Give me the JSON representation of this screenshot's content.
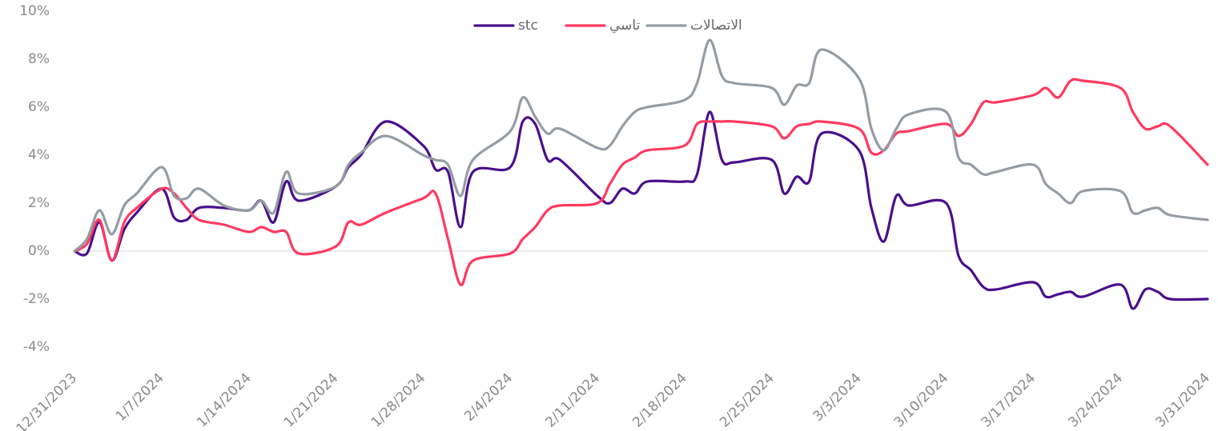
{
  "chart_data": {
    "type": "line",
    "x": [
      "12/31/2023",
      "1/1/2024",
      "1/2/2024",
      "1/3/2024",
      "1/4/2024",
      "1/5/2024",
      "1/7/2024",
      "1/8/2024",
      "1/9/2024",
      "1/10/2024",
      "1/12/2024",
      "1/14/2024",
      "1/15/2024",
      "1/16/2024",
      "1/17/2024",
      "1/18/2024",
      "1/21/2024",
      "1/22/2024",
      "1/23/2024",
      "1/25/2024",
      "1/28/2024",
      "1/29/2024",
      "1/30/2024",
      "1/31/2024",
      "2/1/2024",
      "2/4/2024",
      "2/5/2024",
      "2/6/2024",
      "2/7/2024",
      "2/8/2024",
      "2/11/2024",
      "2/12/2024",
      "2/13/2024",
      "2/14/2024",
      "2/15/2024",
      "2/18/2024",
      "2/19/2024",
      "2/20/2024",
      "2/21/2024",
      "2/22/2024",
      "2/25/2024",
      "2/26/2024",
      "2/27/2024",
      "2/28/2024",
      "2/29/2024",
      "3/3/2024",
      "3/4/2024",
      "3/5/2024",
      "3/6/2024",
      "3/7/2024",
      "3/10/2024",
      "3/11/2024",
      "3/12/2024",
      "3/13/2024",
      "3/14/2024",
      "3/17/2024",
      "3/18/2024",
      "3/19/2024",
      "3/20/2024",
      "3/21/2024",
      "3/24/2024",
      "3/25/2024",
      "3/26/2024",
      "3/27/2024",
      "3/28/2024",
      "3/31/2024"
    ],
    "series": [
      {
        "name": "stc",
        "color": "#4a108c",
        "values": [
          0,
          -0.1,
          1.2,
          -0.4,
          0.9,
          1.6,
          2.6,
          1.4,
          1.3,
          1.8,
          1.8,
          1.7,
          2.1,
          1.2,
          2.9,
          2.1,
          2.7,
          3.5,
          4.0,
          5.4,
          4.4,
          3.4,
          3.3,
          1.0,
          3.3,
          3.5,
          5.4,
          5.3,
          3.8,
          3.8,
          2.3,
          2.0,
          2.6,
          2.4,
          2.9,
          2.9,
          3.2,
          5.8,
          3.8,
          3.7,
          3.8,
          2.4,
          3.1,
          2.9,
          4.9,
          4.2,
          1.8,
          0.4,
          2.3,
          1.9,
          2.0,
          -0.2,
          -0.8,
          -1.5,
          -1.6,
          -1.3,
          -1.9,
          -1.8,
          -1.7,
          -1.9,
          -1.4,
          -2.4,
          -1.6,
          -1.7,
          -2.0,
          -2.0
        ]
      },
      {
        "name": "تاسي",
        "color": "#ff3a60",
        "values": [
          0,
          0.3,
          1.3,
          -0.4,
          1.2,
          1.8,
          2.6,
          2.4,
          1.8,
          1.3,
          1.1,
          0.8,
          1.0,
          0.8,
          0.8,
          -0.1,
          0.2,
          1.2,
          1.1,
          1.6,
          2.2,
          2.4,
          0.5,
          -1.4,
          -0.4,
          -0.1,
          0.5,
          1.0,
          1.7,
          1.9,
          2.0,
          2.8,
          3.6,
          3.9,
          4.2,
          4.4,
          5.3,
          5.4,
          5.4,
          5.4,
          5.2,
          4.7,
          5.2,
          5.3,
          5.4,
          5.1,
          4.1,
          4.2,
          4.9,
          5.0,
          5.3,
          4.8,
          5.3,
          6.2,
          6.2,
          6.5,
          6.8,
          6.4,
          7.1,
          7.1,
          6.8,
          5.8,
          5.1,
          5.2,
          5.2,
          3.6
        ]
      },
      {
        "name": "الاتصالات",
        "color": "#959ca4",
        "values": [
          0,
          0.5,
          1.7,
          0.7,
          1.9,
          2.4,
          3.5,
          2.3,
          2.2,
          2.6,
          1.9,
          1.7,
          2.1,
          1.6,
          3.3,
          2.4,
          2.7,
          3.6,
          4.1,
          4.8,
          4.0,
          3.8,
          3.6,
          2.3,
          3.8,
          5.0,
          6.4,
          5.6,
          4.9,
          5.1,
          4.3,
          4.4,
          5.2,
          5.8,
          6.0,
          6.3,
          7.0,
          8.8,
          7.3,
          7.0,
          6.8,
          6.1,
          6.9,
          7.0,
          8.4,
          7.2,
          5.1,
          4.2,
          5.1,
          5.7,
          5.8,
          3.9,
          3.6,
          3.2,
          3.3,
          3.6,
          2.8,
          2.4,
          2.0,
          2.5,
          2.5,
          1.6,
          1.7,
          1.8,
          1.5,
          1.3
        ]
      }
    ],
    "xlim": [
      "12/31/2023",
      "3/31/2024"
    ],
    "xticks": [
      "12/31/2023",
      "1/7/2024",
      "1/14/2024",
      "1/21/2024",
      "1/28/2024",
      "2/4/2024",
      "2/11/2024",
      "2/18/2024",
      "2/25/2024",
      "3/3/2024",
      "3/10/2024",
      "3/17/2024",
      "3/24/2024",
      "3/31/2024"
    ],
    "ylim": [
      -4,
      10
    ],
    "yticks": [
      {
        "value": -4,
        "label": "-4%"
      },
      {
        "value": -2,
        "label": "-2%"
      },
      {
        "value": 0,
        "label": "0%"
      },
      {
        "value": 2,
        "label": "2%"
      },
      {
        "value": 4,
        "label": "4%"
      },
      {
        "value": 6,
        "label": "6%"
      },
      {
        "value": 8,
        "label": "8%"
      },
      {
        "value": 10,
        "label": "10%"
      }
    ],
    "grid": false,
    "legend": "top"
  }
}
